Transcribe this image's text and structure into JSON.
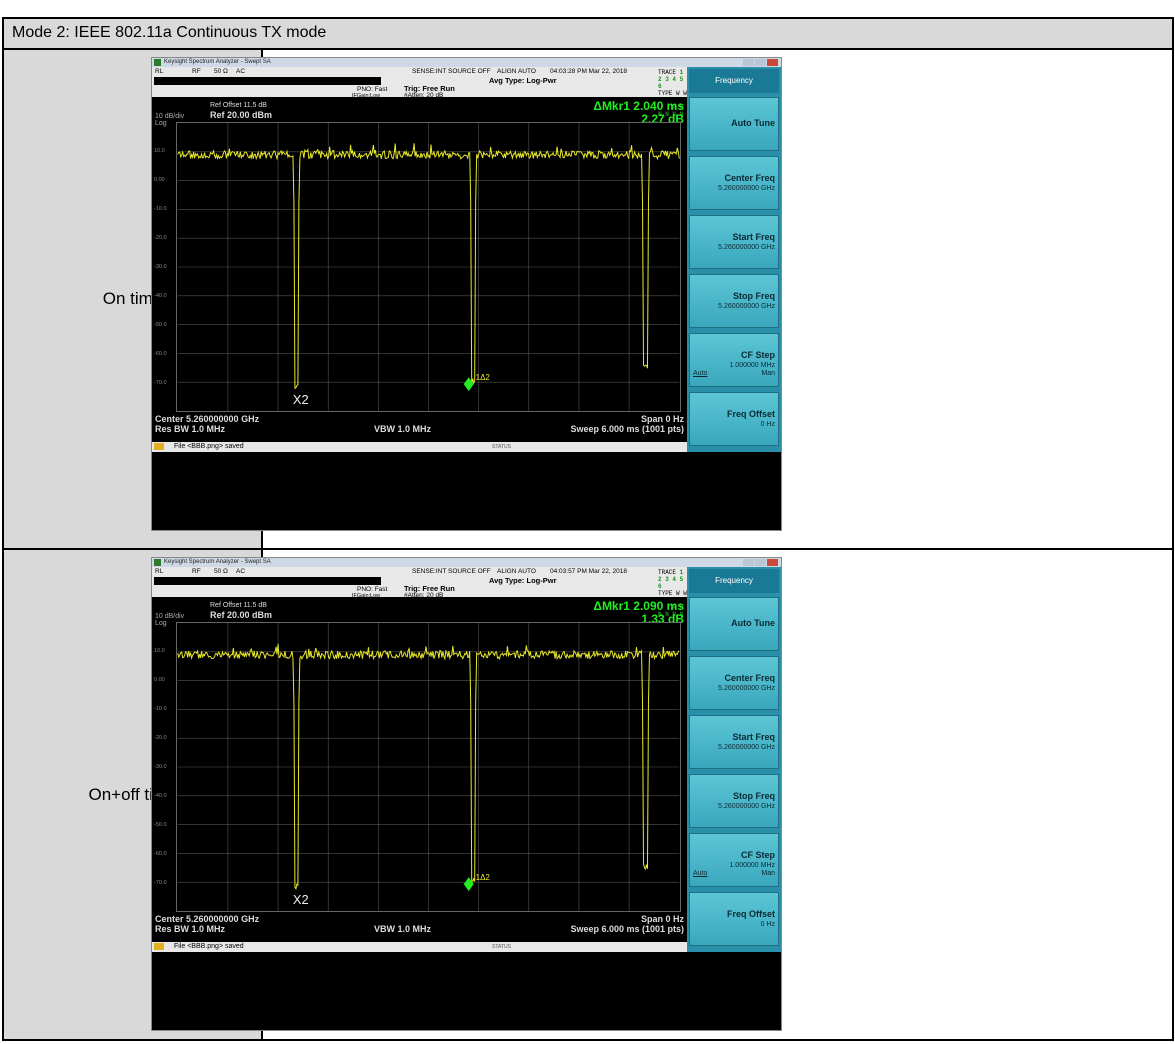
{
  "table": {
    "header": "Mode 2: IEEE 802.11a Continuous TX mode",
    "rows": [
      {
        "label": "On time"
      },
      {
        "label": "On+off time"
      }
    ]
  },
  "screens": [
    {
      "title": "Keysight Spectrum Analyzer - Swept SA",
      "status": {
        "rl": "RL",
        "rf": "RF",
        "imp": "50 Ω",
        "ac": "AC",
        "sense": "SENSE:INT  SOURCE OFF",
        "align": "ALIGN AUTO",
        "time": "04:03:28 PM Mar 22, 2018",
        "avg": "Avg Type: Log-Pwr",
        "pno": "PNO: Fast",
        "ifgain": "IFGain:Low",
        "trig": "Trig: Free Run",
        "atten": "#Atten: 20 dB",
        "trace_label": "TRACE",
        "trace_vals": "1 2 3 4 5 6",
        "type_label": "TYPE",
        "type_vals": "W W W W W W",
        "det_label": "DET",
        "det_vals": "P N N N N N"
      },
      "ref_offset": "Ref Offset 11.5 dB",
      "ref_level": "Ref 20.00 dBm",
      "scale": "10 dB/div",
      "log": "Log",
      "marker_delta": "ΔMkr1 2.040 ms",
      "marker_value": "2.27 dB",
      "y_ticks": [
        "10.0",
        "0.00",
        "-10.0",
        "-20.0",
        "-30.0",
        "-40.0",
        "-50.0",
        "-60.0",
        "-70.0"
      ],
      "marker_x_label": "X2",
      "marker_d_label": "1Δ2",
      "center": "Center 5.260000000 GHz",
      "span": "Span 0 Hz",
      "rbw": "Res BW 1.0 MHz",
      "vbw": "VBW 1.0 MHz",
      "sweep": "Sweep  6.000 ms (1001 pts)",
      "msg": "File <BBB.png> saved",
      "status_label": "STATUS",
      "softkey_title": "Frequency",
      "softkeys": [
        {
          "title": "Auto Tune",
          "value": ""
        },
        {
          "title": "Center Freq",
          "value": "5.260000000 GHz"
        },
        {
          "title": "Start Freq",
          "value": "5.260000000 GHz"
        },
        {
          "title": "Stop Freq",
          "value": "5.260000000 GHz"
        },
        {
          "title": "CF Step",
          "value": "1.000000 MHz",
          "auto": "Auto",
          "man": "Man"
        },
        {
          "title": "Freq Offset",
          "value": "0 Hz"
        }
      ]
    },
    {
      "title": "Keysight Spectrum Analyzer - Swept SA",
      "status": {
        "rl": "RL",
        "rf": "RF",
        "imp": "50 Ω",
        "ac": "AC",
        "sense": "SENSE:INT  SOURCE OFF",
        "align": "ALIGN AUTO",
        "time": "04:03:57 PM Mar 22, 2018",
        "avg": "Avg Type: Log-Pwr",
        "pno": "PNO: Fast",
        "ifgain": "IFGain:Low",
        "trig": "Trig: Free Run",
        "atten": "#Atten: 20 dB",
        "trace_label": "TRACE",
        "trace_vals": "1 2 3 4 5 6",
        "type_label": "TYPE",
        "type_vals": "W W W W W W",
        "det_label": "DET",
        "det_vals": "P N N N N N"
      },
      "ref_offset": "Ref Offset 11.5 dB",
      "ref_level": "Ref 20.00 dBm",
      "scale": "10 dB/div",
      "log": "Log",
      "marker_delta": "ΔMkr1 2.090 ms",
      "marker_value": "1.33 dB",
      "y_ticks": [
        "10.0",
        "0.00",
        "-10.0",
        "-20.0",
        "-30.0",
        "-40.0",
        "-50.0",
        "-60.0",
        "-70.0"
      ],
      "marker_x_label": "X2",
      "marker_d_label": "1Δ2",
      "center": "Center 5.260000000 GHz",
      "span": "Span 0 Hz",
      "rbw": "Res BW 1.0 MHz",
      "vbw": "VBW 1.0 MHz",
      "sweep": "Sweep  6.000 ms (1001 pts)",
      "msg": "File <BBB.png> saved",
      "status_label": "STATUS",
      "softkey_title": "Frequency",
      "softkeys": [
        {
          "title": "Auto Tune",
          "value": ""
        },
        {
          "title": "Center Freq",
          "value": "5.260000000 GHz"
        },
        {
          "title": "Start Freq",
          "value": "5.260000000 GHz"
        },
        {
          "title": "Stop Freq",
          "value": "5.260000000 GHz"
        },
        {
          "title": "CF Step",
          "value": "1.000000 MHz",
          "auto": "Auto",
          "man": "Man"
        },
        {
          "title": "Freq Offset",
          "value": "0 Hz"
        }
      ]
    }
  ],
  "colors": {
    "trace": "#e8e82a",
    "marker": "#22ee22",
    "softkey": "#4bb8cc",
    "cell_bg": "#d9d9d9"
  }
}
